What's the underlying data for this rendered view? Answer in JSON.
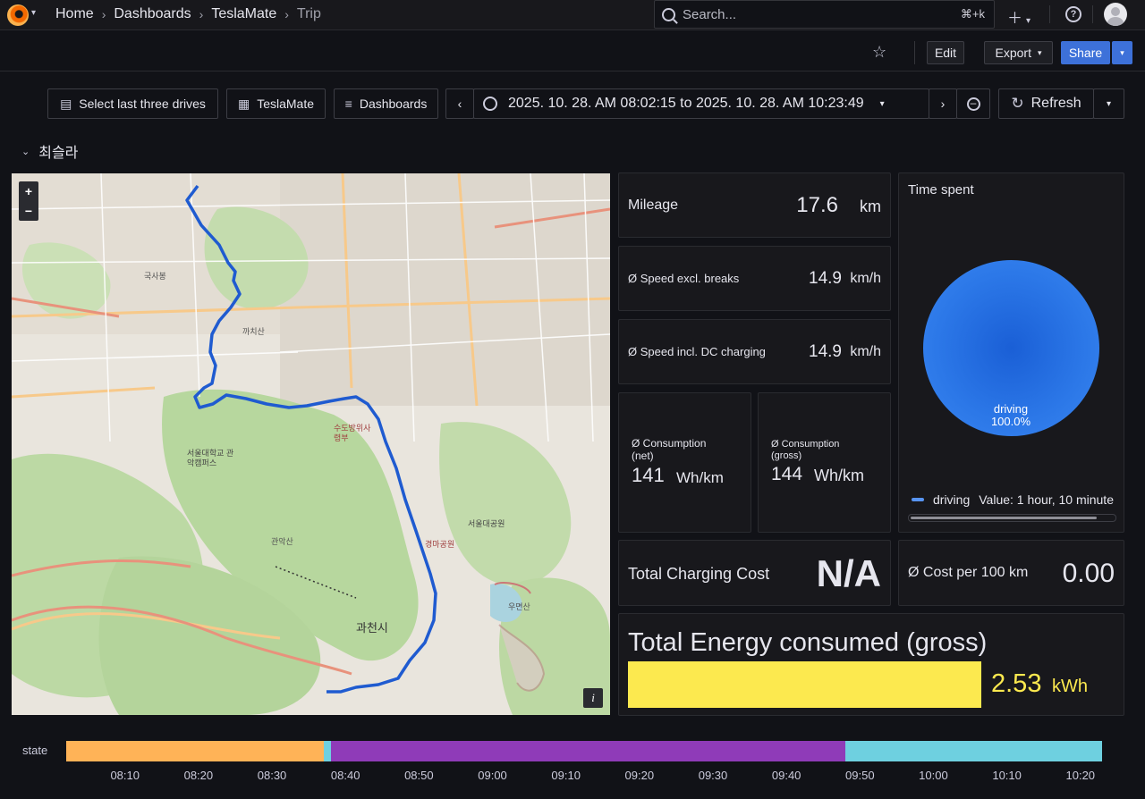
{
  "nav": {
    "breadcrumb": [
      "Home",
      "Dashboards",
      "TeslaMate",
      "Trip"
    ],
    "search_placeholder": "Search...",
    "search_shortcut": "⌘+k"
  },
  "toolbar": {
    "edit_label": "Edit",
    "export_label": "Export",
    "share_label": "Share"
  },
  "controls": {
    "select_last_label": "Select last three drives",
    "teslamate_label": "TeslaMate",
    "dashboards_label": "Dashboards",
    "time_range": "2025. 10. 28. AM 08:02:15 to 2025. 10. 28. AM 10:23:49",
    "refresh_label": "Refresh"
  },
  "section": {
    "title": "최슬라"
  },
  "map": {
    "zoom_in": "+",
    "zoom_out": "−",
    "info": "i",
    "place_labels": [
      "관악산",
      "과천시",
      "서울대학교 관악캠퍼스",
      "서울대공원",
      "수도방위사령부",
      "경마공원",
      "국사봉",
      "까치산",
      "우면산"
    ]
  },
  "stats": {
    "mileage": {
      "label": "Mileage",
      "value": "17.6",
      "unit": "km"
    },
    "speed_excl": {
      "label": "Ø Speed excl. breaks",
      "value": "14.9",
      "unit": "km/h"
    },
    "speed_incl": {
      "label": "Ø Speed incl. DC charging",
      "value": "14.9",
      "unit": "km/h"
    },
    "cons_net": {
      "label1": "Ø Consumption",
      "label2": "(net)",
      "value": "141",
      "unit": "Wh/km"
    },
    "cons_gross": {
      "label1": "Ø Consumption",
      "label2": "(gross)",
      "value": "144",
      "unit": "Wh/km"
    },
    "charging_cost": {
      "label": "Total Charging Cost",
      "value": "N/A"
    },
    "cost_per_100": {
      "label": "Ø Cost per 100 km",
      "value": "0.00"
    },
    "energy": {
      "label": "Total Energy consumed (gross)",
      "value": "2.53",
      "unit": "kWh"
    }
  },
  "time_spent": {
    "title": "Time spent",
    "slice_name": "driving",
    "slice_pct": "100.0%",
    "legend_name": "driving",
    "legend_value": "Value: 1 hour, 10 minute"
  },
  "colors": {
    "accent": "#3d71d9",
    "route": "#1f5bd0",
    "pie": "#2c78e8",
    "energy_bar": "#fce94f",
    "state_orange": "#ffb357",
    "state_purple": "#8f3bb8",
    "state_cyan": "#6ed0e0"
  },
  "state_timeline": {
    "label": "state",
    "segments": [
      {
        "color": "#ffb357",
        "start": "08:02",
        "end": "08:37"
      },
      {
        "color": "#6ed0e0",
        "start": "08:37",
        "end": "08:38"
      },
      {
        "color": "#8f3bb8",
        "start": "08:38",
        "end": "09:48"
      },
      {
        "color": "#6ed0e0",
        "start": "09:48",
        "end": "10:23"
      }
    ],
    "ticks": [
      "08:10",
      "08:20",
      "08:30",
      "08:40",
      "08:50",
      "09:00",
      "09:10",
      "09:20",
      "09:30",
      "09:40",
      "09:50",
      "10:00",
      "10:10",
      "10:20"
    ]
  }
}
